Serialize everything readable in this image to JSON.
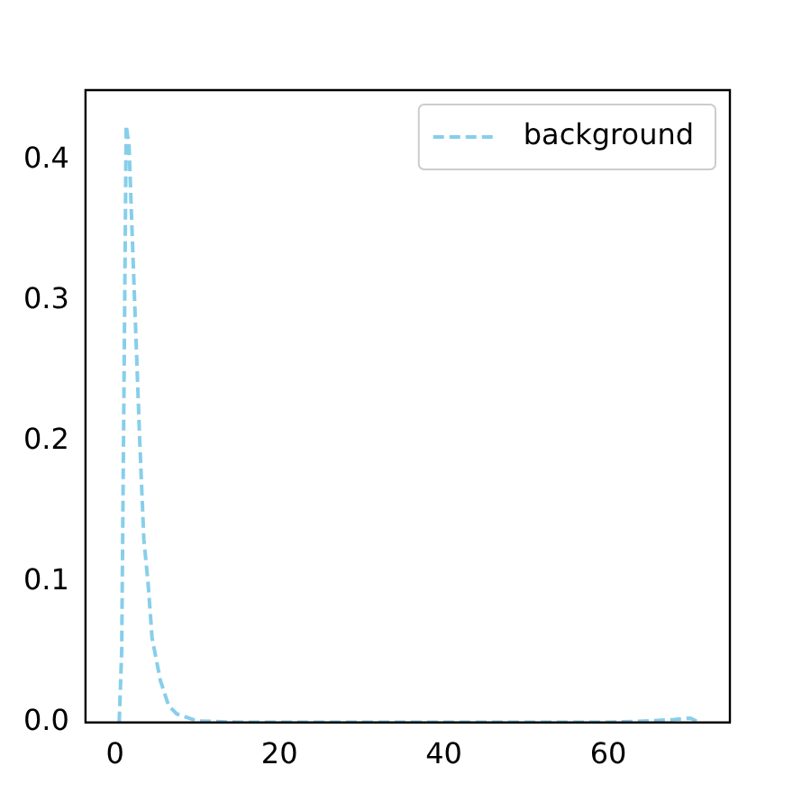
{
  "chart_data": {
    "type": "line",
    "x": [
      0.5,
      0.8,
      1.1,
      1.35,
      1.7,
      2.0,
      2.5,
      3.0,
      3.5,
      4.0,
      4.5,
      5.5,
      6.5,
      7.5,
      8.5,
      10,
      15,
      20,
      30,
      40,
      50,
      60,
      65,
      68,
      70,
      71
    ],
    "series": [
      {
        "name": "background",
        "color": "#87ceeb",
        "values": [
          0,
          0.05,
          0.25,
          0.425,
          0.41,
          0.36,
          0.28,
          0.2,
          0.13,
          0.1,
          0.06,
          0.03,
          0.012,
          0.006,
          0.004,
          0.001,
          0,
          0,
          0,
          0,
          0,
          0,
          0.001,
          0.002,
          0.003,
          0
        ]
      }
    ],
    "xlim": [
      -3.6,
      74.8
    ],
    "xticks": [
      0,
      20,
      40,
      60
    ],
    "ylim": [
      0,
      0.45
    ],
    "yticks": [
      {
        "value": 0,
        "label": "0.0"
      },
      {
        "value": 0.1,
        "label": "0.1"
      },
      {
        "value": 0.2,
        "label": "0.2"
      },
      {
        "value": 0.3,
        "label": "0.3"
      },
      {
        "value": 0.4,
        "label": "0.4"
      }
    ],
    "legend": "top right",
    "line_style": "dashed",
    "marker": "none",
    "grid": false
  }
}
